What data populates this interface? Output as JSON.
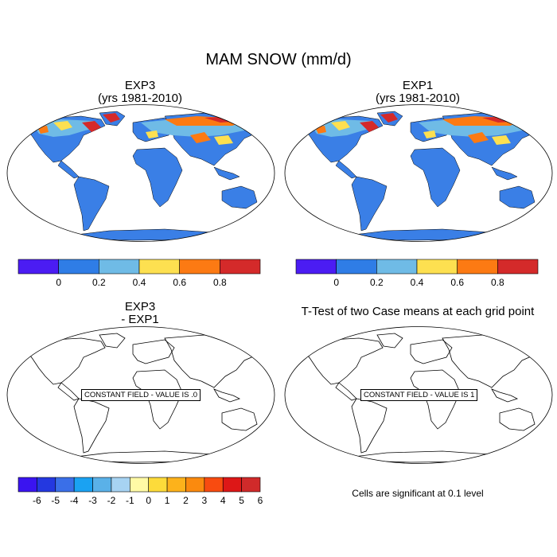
{
  "figure": {
    "title": "MAM SNOW (mm/d)"
  },
  "panels": [
    {
      "id": "exp3",
      "title_line1": "EXP3",
      "title_line2": "(yrs 1981-2010)"
    },
    {
      "id": "exp1",
      "title_line1": "EXP1",
      "title_line2": "(yrs 1981-2010)"
    },
    {
      "id": "diff",
      "title_line1": "EXP3",
      "title_line2": "- EXP1",
      "constant_field_label": "CONSTANT FIELD - VALUE IS .0"
    },
    {
      "id": "ttest",
      "title_line1": "T-Test of two Case means at each grid point",
      "constant_field_label": "CONSTANT FIELD - VALUE IS 1"
    }
  ],
  "colorbars": {
    "abs": {
      "colors": [
        "#4b1cf3",
        "#2f7de6",
        "#6fbbe6",
        "#fde050",
        "#fc7a13",
        "#d42a2a"
      ],
      "labels": [
        "0",
        "0.2",
        "0.4",
        "0.6",
        "0.8"
      ]
    },
    "diff": {
      "colors": [
        "#3a14f0",
        "#2438e0",
        "#3a6fe8",
        "#1aa2f2",
        "#5ab1e8",
        "#a7d3f2",
        "#fffaa6",
        "#fddb3a",
        "#fdb21b",
        "#fb8a0e",
        "#f84b10",
        "#dd1717",
        "#d02a2a"
      ],
      "labels": [
        "-6",
        "-5",
        "-4",
        "-3",
        "-2",
        "-1",
        "0",
        "1",
        "2",
        "3",
        "4",
        "5",
        "6"
      ]
    }
  },
  "significance_note": "Cells are significant at 0.1 level",
  "map_fill": {
    "ocean": "#ffffff",
    "land": "#3a7fe6",
    "snow_low": "#6fbbe6",
    "snow_mid": "#fde050",
    "snow_high": "#fc7a13",
    "snow_max": "#d42a2a",
    "coast": "#000000"
  }
}
